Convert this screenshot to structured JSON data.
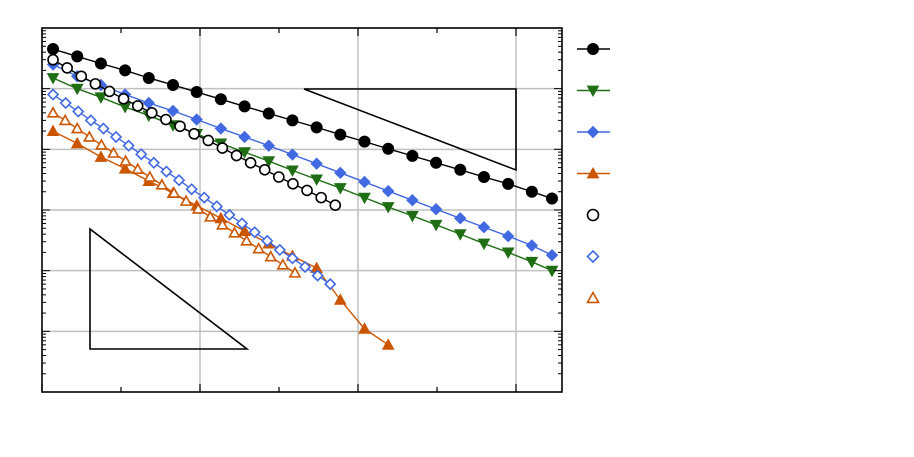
{
  "chart_data": {
    "type": "line",
    "title": "",
    "xlabel": "",
    "ylabel": "",
    "xlim": [
      0,
      1
    ],
    "ylim": [
      1e-06,
      1
    ],
    "y_scale": "log",
    "grid": true,
    "legend_position": "right",
    "series": [
      {
        "color": "#000000",
        "marker": "filled-circle",
        "fill": true,
        "x": [
          0.01,
          0.058,
          0.105,
          0.153,
          0.2,
          0.248,
          0.295,
          0.343,
          0.39,
          0.438,
          0.485,
          0.533,
          0.58,
          0.628,
          0.675,
          0.723,
          0.77,
          0.818,
          0.865,
          0.913,
          0.96,
          1.0
        ],
        "y": [
          0.45,
          0.34,
          0.26,
          0.2,
          0.15,
          0.115,
          0.088,
          0.067,
          0.051,
          0.039,
          0.03,
          0.023,
          0.0175,
          0.0134,
          0.0102,
          0.0078,
          0.006,
          0.0046,
          0.0035,
          0.0027,
          0.002,
          0.00155
        ]
      },
      {
        "color": "#1f6e14",
        "marker": "filled-triangle-down",
        "fill": true,
        "x": [
          0.01,
          0.058,
          0.105,
          0.153,
          0.2,
          0.248,
          0.295,
          0.343,
          0.39,
          0.438,
          0.485,
          0.533,
          0.58,
          0.628,
          0.675,
          0.723,
          0.77,
          0.818,
          0.865,
          0.913,
          0.96,
          1.0
        ],
        "y": [
          0.15,
          0.1,
          0.072,
          0.05,
          0.036,
          0.025,
          0.018,
          0.0125,
          0.009,
          0.0064,
          0.0045,
          0.0032,
          0.0023,
          0.0016,
          0.00112,
          0.0008,
          0.00057,
          0.0004,
          0.00028,
          0.0002,
          0.00014,
          0.0001
        ]
      },
      {
        "color": "#4169e1",
        "marker": "filled-diamond",
        "fill": true,
        "x": [
          0.01,
          0.058,
          0.105,
          0.153,
          0.2,
          0.248,
          0.295,
          0.343,
          0.39,
          0.438,
          0.485,
          0.533,
          0.58,
          0.628,
          0.675,
          0.723,
          0.77,
          0.818,
          0.865,
          0.913,
          0.96,
          1.0
        ],
        "y": [
          0.25,
          0.16,
          0.115,
          0.08,
          0.058,
          0.043,
          0.031,
          0.022,
          0.016,
          0.0115,
          0.0082,
          0.0058,
          0.0041,
          0.0029,
          0.00205,
          0.00145,
          0.00103,
          0.00073,
          0.00052,
          0.00037,
          0.00026,
          0.00018
        ]
      },
      {
        "color": "#cc5500",
        "marker": "filled-triangle-up",
        "fill": true,
        "x": [
          0.01,
          0.058,
          0.105,
          0.153,
          0.2,
          0.248,
          0.295,
          0.343,
          0.39,
          0.438,
          0.485,
          0.533,
          0.58,
          0.628,
          0.675
        ],
        "y": [
          0.02,
          0.0125,
          0.0075,
          0.0048,
          0.003,
          0.0019,
          0.00118,
          0.00073,
          0.00045,
          0.00028,
          0.000175,
          0.00011,
          3.3e-05,
          1.1e-05,
          6e-06
        ]
      },
      {
        "color": "#000000",
        "marker": "open-circle",
        "fill": false,
        "x": [
          0.01,
          0.038,
          0.066,
          0.094,
          0.122,
          0.15,
          0.178,
          0.206,
          0.234,
          0.262,
          0.29,
          0.318,
          0.346,
          0.374,
          0.402,
          0.43,
          0.458,
          0.486,
          0.514,
          0.542,
          0.57
        ],
        "y": [
          0.3,
          0.22,
          0.16,
          0.12,
          0.09,
          0.068,
          0.052,
          0.04,
          0.031,
          0.024,
          0.018,
          0.014,
          0.0105,
          0.0079,
          0.006,
          0.0046,
          0.0035,
          0.0027,
          0.0021,
          0.0016,
          0.0012
        ]
      },
      {
        "color": "#4169e1",
        "marker": "open-diamond",
        "fill": false,
        "x": [
          0.01,
          0.035,
          0.06,
          0.085,
          0.11,
          0.135,
          0.16,
          0.185,
          0.21,
          0.235,
          0.26,
          0.285,
          0.31,
          0.335,
          0.36,
          0.385,
          0.41,
          0.435,
          0.46,
          0.485,
          0.51,
          0.535,
          0.56
        ],
        "y": [
          0.08,
          0.058,
          0.042,
          0.03,
          0.022,
          0.016,
          0.0115,
          0.0083,
          0.006,
          0.0043,
          0.0031,
          0.0022,
          0.0016,
          0.00115,
          0.00083,
          0.0006,
          0.00043,
          0.00031,
          0.00022,
          0.00016,
          0.000115,
          8.3e-05,
          6e-05
        ]
      },
      {
        "color": "#cc5500",
        "marker": "open-triangle-up",
        "fill": false,
        "x": [
          0.01,
          0.034,
          0.058,
          0.082,
          0.106,
          0.13,
          0.154,
          0.178,
          0.202,
          0.226,
          0.25,
          0.274,
          0.298,
          0.322,
          0.346,
          0.37,
          0.394,
          0.418,
          0.442,
          0.466,
          0.49
        ],
        "y": [
          0.04,
          0.03,
          0.022,
          0.016,
          0.0118,
          0.0087,
          0.0064,
          0.0047,
          0.0035,
          0.0026,
          0.0019,
          0.0014,
          0.00104,
          0.00077,
          0.00057,
          0.00042,
          0.00031,
          0.00023,
          0.00017,
          0.000125,
          9.2e-05
        ]
      }
    ],
    "slope_triangles": [
      {
        "orientation": "downward-hypotenuse-top-right"
      },
      {
        "orientation": "downward-hypotenuse-bottom-left"
      }
    ]
  }
}
